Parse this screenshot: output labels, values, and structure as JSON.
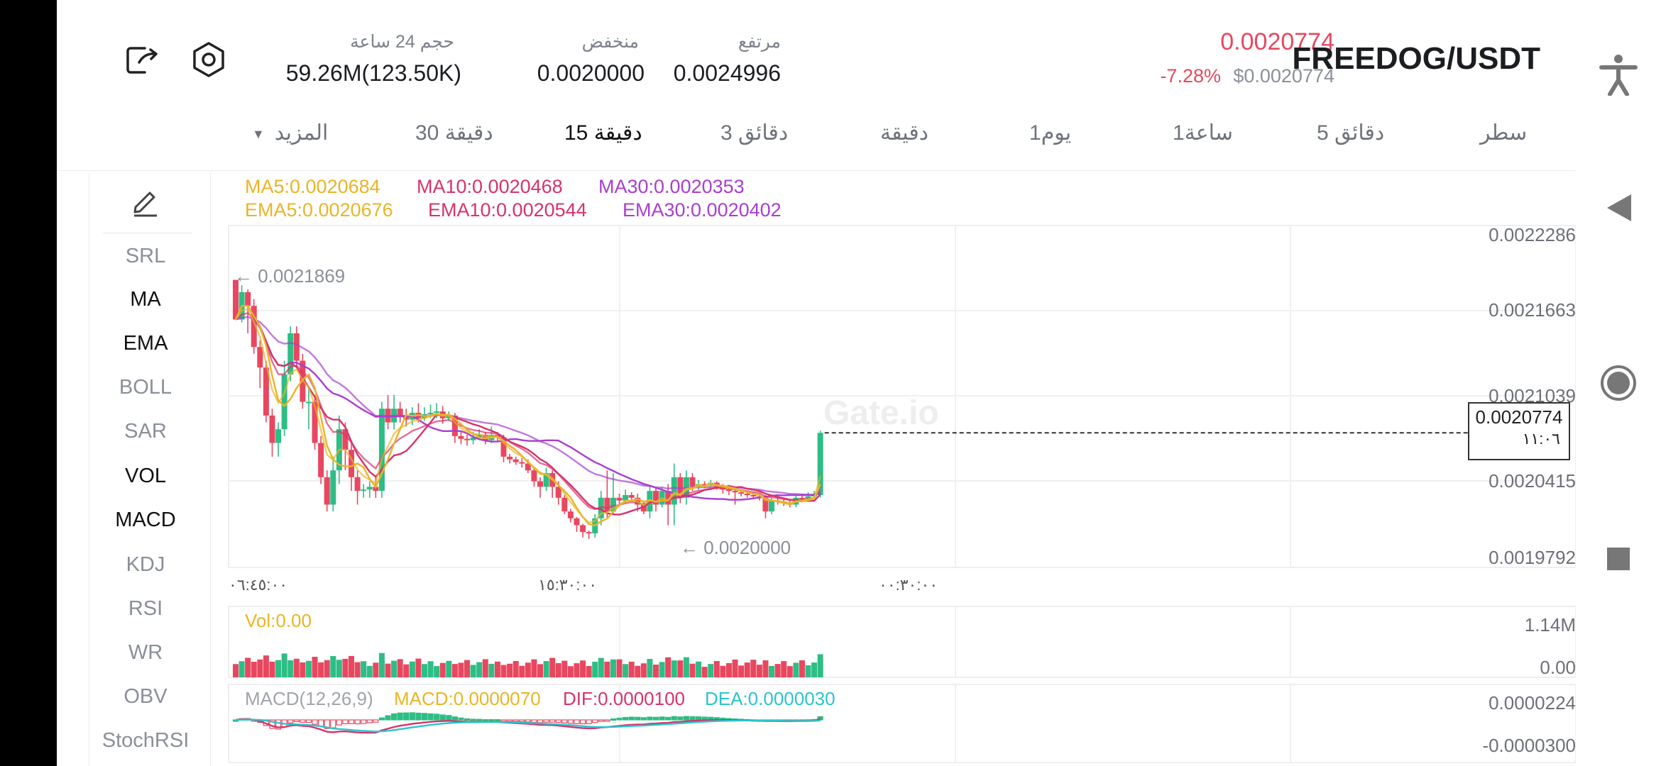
{
  "header": {
    "pair": "FREEDOG/USDT",
    "last_price": "0.0020774",
    "change_pct": "-7.28%",
    "usd_price": "$0.0020774",
    "stats": [
      {
        "label": "مرتفع",
        "value": "0.0024996"
      },
      {
        "label": "منخفض",
        "value": "0.0020000"
      },
      {
        "label": "حجم 24 ساعة",
        "value": "59.26M(123.50K)"
      }
    ]
  },
  "intervals": {
    "tabs": [
      "سطر",
      "5 دقائق",
      "1ساعة",
      "1يوم",
      "دقيقة",
      "3 دقائق",
      "15 دقيقة",
      "30 دقيقة"
    ],
    "more_label": "المزيد",
    "active": "15 دقيقة"
  },
  "indicators": {
    "items": [
      "SRL",
      "MA",
      "EMA",
      "BOLL",
      "SAR",
      "VOL",
      "MACD",
      "KDJ",
      "RSI",
      "WR",
      "OBV",
      "StochRSI"
    ],
    "active": [
      "MA",
      "EMA",
      "VOL",
      "MACD"
    ]
  },
  "legends": {
    "ma5": "MA5:0.0020684",
    "ma10": "MA10:0.0020468",
    "ma30": "MA30:0.0020353",
    "ema5": "EMA5:0.0020676",
    "ema10": "EMA10:0.0020544",
    "ema30": "EMA30:0.0020402",
    "vol": "Vol:0.00",
    "macd_params": "MACD(12,26,9)",
    "macd": "MACD:0.0000070",
    "dif": "DIF:0.0000100",
    "dea": "DEA:0.0000030"
  },
  "colors": {
    "up": "#2ebd85",
    "down": "#e8475f",
    "ma5": "#e9b526",
    "ma10": "#d6336c",
    "ma30": "#a93ed1",
    "dea": "#2bc4cc",
    "price_red": "#e8475f"
  },
  "chart_data": {
    "type": "candlestick",
    "price_axis": [
      "0.0022286",
      "0.0021663",
      "0.0021039",
      "0.0020415",
      "0.0019792"
    ],
    "time_axis": [
      "٠٦:٤٥:٠٠",
      "١٥:٣٠:٠٠",
      "٠٠:٣٠:٠٠"
    ],
    "high_marker": "← 0.0021869",
    "low_marker": "← 0.0020000",
    "current_price": "0.0020774",
    "current_time": "١١:٠٦",
    "volume_axis": [
      "1.14M",
      "0.00"
    ],
    "macd_axis": [
      "0.0000224",
      "-0.0000300"
    ],
    "ylim": [
      0.0019792,
      0.0022286
    ],
    "candles": [
      [
        0.002189,
        0.00216,
        0.0021869,
        0.00216
      ],
      [
        0.00216,
        0.00218,
        0.002185,
        0.002158
      ],
      [
        0.00218,
        0.00217,
        0.002182,
        0.00215
      ],
      [
        0.00217,
        0.00214,
        0.002175,
        0.002135
      ],
      [
        0.00214,
        0.002125,
        0.002145,
        0.00211
      ],
      [
        0.002125,
        0.00209,
        0.00213,
        0.002085
      ],
      [
        0.00209,
        0.00207,
        0.002095,
        0.00206
      ],
      [
        0.00207,
        0.00208,
        0.002085,
        0.00206
      ],
      [
        0.00208,
        0.00212,
        0.00213,
        0.002075
      ],
      [
        0.00212,
        0.00215,
        0.002155,
        0.002115
      ],
      [
        0.00215,
        0.00213,
        0.002155,
        0.002125
      ],
      [
        0.00213,
        0.0021,
        0.002135,
        0.002095
      ],
      [
        0.0021,
        0.0021,
        0.00211,
        0.00208
      ],
      [
        0.0021,
        0.00207,
        0.002105,
        0.002065
      ],
      [
        0.00207,
        0.002045,
        0.002075,
        0.00204
      ],
      [
        0.002045,
        0.002025,
        0.00205,
        0.00202
      ],
      [
        0.002025,
        0.00205,
        0.00206,
        0.00202
      ],
      [
        0.00205,
        0.00208,
        0.00209,
        0.00204
      ],
      [
        0.00208,
        0.002065,
        0.002085,
        0.00205
      ],
      [
        0.002065,
        0.002045,
        0.00207,
        0.002035
      ],
      [
        0.002045,
        0.002035,
        0.00205,
        0.002025
      ],
      [
        0.002035,
        0.002036,
        0.00204,
        0.00203
      ],
      [
        0.002036,
        0.002038,
        0.002042,
        0.00203
      ],
      [
        0.002038,
        0.002035,
        0.002045,
        0.00203
      ],
      [
        0.002035,
        0.002095,
        0.0021,
        0.00203
      ],
      [
        0.002095,
        0.002085,
        0.002105,
        0.00208
      ],
      [
        0.002085,
        0.002095,
        0.002105,
        0.00208
      ],
      [
        0.002095,
        0.00209,
        0.0021,
        0.002085
      ],
      [
        0.00209,
        0.002087,
        0.002095,
        0.002082
      ],
      [
        0.002087,
        0.002092,
        0.002096,
        0.002083
      ],
      [
        0.002092,
        0.002088,
        0.002099,
        0.002085
      ],
      [
        0.002088,
        0.002091,
        0.002096,
        0.002086
      ],
      [
        0.002091,
        0.002092,
        0.002098,
        0.002088
      ],
      [
        0.002092,
        0.002093,
        0.002099,
        0.002088
      ],
      [
        0.002093,
        0.002088,
        0.002097,
        0.002084
      ],
      [
        0.002088,
        0.00209,
        0.002093,
        0.002086
      ],
      [
        0.00209,
        0.002075,
        0.002092,
        0.00207
      ],
      [
        0.002075,
        0.002073,
        0.002078,
        0.002069
      ],
      [
        0.002073,
        0.002072,
        0.002076,
        0.002068
      ],
      [
        0.002072,
        0.002074,
        0.002078,
        0.002069
      ],
      [
        0.002074,
        0.002076,
        0.00208,
        0.002072
      ],
      [
        0.002076,
        0.002072,
        0.002078,
        0.002069
      ],
      [
        0.002072,
        0.002076,
        0.002082,
        0.00207
      ],
      [
        0.002076,
        0.002074,
        0.002078,
        0.002071
      ],
      [
        0.002074,
        0.00206,
        0.002076,
        0.002056
      ],
      [
        0.00206,
        0.002058,
        0.002062,
        0.002055
      ],
      [
        0.002058,
        0.002056,
        0.00206,
        0.002054
      ],
      [
        0.002056,
        0.002055,
        0.002059,
        0.002052
      ],
      [
        0.002055,
        0.00205,
        0.002058,
        0.002048
      ],
      [
        0.00205,
        0.002042,
        0.002052,
        0.002038
      ],
      [
        0.002042,
        0.002038,
        0.002045,
        0.00203
      ],
      [
        0.002038,
        0.002048,
        0.002052,
        0.002035
      ],
      [
        0.002048,
        0.002038,
        0.00205,
        0.00203
      ],
      [
        0.002038,
        0.00203,
        0.002042,
        0.002025
      ],
      [
        0.00203,
        0.00202,
        0.002032,
        0.002018
      ],
      [
        0.00202,
        0.002015,
        0.002022,
        0.002012
      ],
      [
        0.002015,
        0.00201,
        0.002016,
        0.002005
      ],
      [
        0.00201,
        0.002005,
        0.002011,
        0.002001
      ],
      [
        0.002005,
        0.002004,
        0.002006,
        0.002
      ],
      [
        0.002004,
        0.002015,
        0.002018,
        0.002001
      ],
      [
        0.002015,
        0.00203,
        0.002035,
        0.00201
      ],
      [
        0.00203,
        0.00202,
        0.00205,
        0.002015
      ],
      [
        0.00202,
        0.00203,
        0.002048,
        0.002018
      ],
      [
        0.00203,
        0.002028,
        0.002033,
        0.002025
      ],
      [
        0.002028,
        0.002032,
        0.002036,
        0.002026
      ],
      [
        0.002032,
        0.00203,
        0.002034,
        0.002028
      ],
      [
        0.00203,
        0.002025,
        0.002033,
        0.00202
      ],
      [
        0.002025,
        0.00202,
        0.002028,
        0.002018
      ],
      [
        0.00202,
        0.002035,
        0.002038,
        0.002015
      ],
      [
        0.002035,
        0.002025,
        0.002037,
        0.00202
      ],
      [
        0.002025,
        0.002035,
        0.002038,
        0.002023
      ],
      [
        0.002035,
        0.002025,
        0.00204,
        0.00201
      ],
      [
        0.002025,
        0.002045,
        0.002055,
        0.00201
      ],
      [
        0.002045,
        0.00203,
        0.002048,
        0.002026
      ],
      [
        0.00203,
        0.002045,
        0.00205,
        0.002025
      ],
      [
        0.002045,
        0.002038,
        0.002048,
        0.002035
      ],
      [
        0.002038,
        0.00204,
        0.002043,
        0.002036
      ],
      [
        0.00204,
        0.002039,
        0.002042,
        0.002037
      ],
      [
        0.002039,
        0.002041,
        0.002043,
        0.002038
      ],
      [
        0.002041,
        0.002038,
        0.002042,
        0.002036
      ],
      [
        0.002038,
        0.002036,
        0.00204,
        0.002033
      ],
      [
        0.002036,
        0.002035,
        0.002038,
        0.002032
      ],
      [
        0.002035,
        0.002034,
        0.002037,
        0.002025
      ],
      [
        0.002034,
        0.002033,
        0.002035,
        0.002031
      ],
      [
        0.002033,
        0.002032,
        0.002035,
        0.00203
      ],
      [
        0.002032,
        0.002031,
        0.002034,
        0.002029
      ],
      [
        0.002031,
        0.00203,
        0.002033,
        0.002028
      ],
      [
        0.00203,
        0.00202,
        0.002032,
        0.002015
      ],
      [
        0.00202,
        0.002028,
        0.00203,
        0.002018
      ],
      [
        0.002028,
        0.002027,
        0.00203,
        0.002025
      ],
      [
        0.002027,
        0.002026,
        0.002029,
        0.002024
      ],
      [
        0.002026,
        0.002025,
        0.002028,
        0.002023
      ],
      [
        0.002025,
        0.00203,
        0.002032,
        0.002023
      ],
      [
        0.00203,
        0.002029,
        0.002033,
        0.002027
      ],
      [
        0.002029,
        0.002031,
        0.002034,
        0.002028
      ],
      [
        0.002031,
        0.002032,
        0.002035,
        0.00203
      ],
      [
        0.002032,
        0.0020774,
        0.002079,
        0.00203
      ]
    ]
  }
}
